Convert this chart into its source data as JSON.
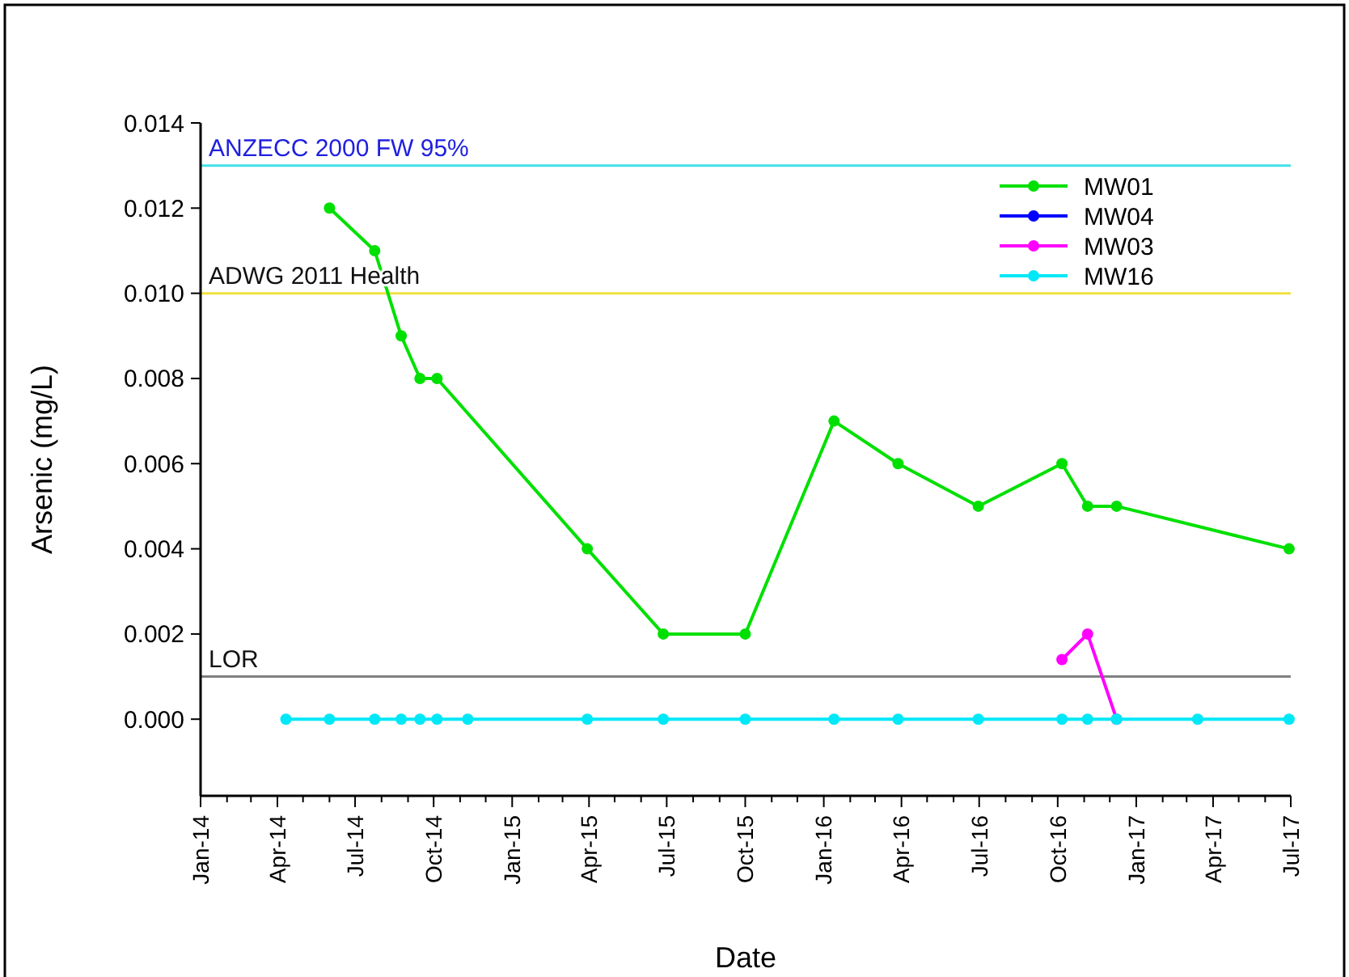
{
  "chart_data": {
    "type": "line",
    "xlabel": "Date",
    "ylabel": "Arsenic (mg/L)",
    "xlim": [
      "2014-01-01",
      "2017-07-01"
    ],
    "ylim": [
      -0.0018,
      0.014
    ],
    "xticks": [
      {
        "value": "2014-01-01",
        "label": "Jan-14"
      },
      {
        "value": "2014-02-01",
        "label": null
      },
      {
        "value": "2014-03-01",
        "label": null
      },
      {
        "value": "2014-04-01",
        "label": "Apr-14"
      },
      {
        "value": "2014-05-01",
        "label": null
      },
      {
        "value": "2014-06-01",
        "label": null
      },
      {
        "value": "2014-07-01",
        "label": "Jul-14"
      },
      {
        "value": "2014-08-01",
        "label": null
      },
      {
        "value": "2014-09-01",
        "label": null
      },
      {
        "value": "2014-10-01",
        "label": "Oct-14"
      },
      {
        "value": "2014-11-01",
        "label": null
      },
      {
        "value": "2014-12-01",
        "label": null
      },
      {
        "value": "2015-01-01",
        "label": "Jan-15"
      },
      {
        "value": "2015-02-01",
        "label": null
      },
      {
        "value": "2015-03-01",
        "label": null
      },
      {
        "value": "2015-04-01",
        "label": "Apr-15"
      },
      {
        "value": "2015-05-01",
        "label": null
      },
      {
        "value": "2015-06-01",
        "label": null
      },
      {
        "value": "2015-07-01",
        "label": "Jul-15"
      },
      {
        "value": "2015-08-01",
        "label": null
      },
      {
        "value": "2015-09-01",
        "label": null
      },
      {
        "value": "2015-10-01",
        "label": "Oct-15"
      },
      {
        "value": "2015-11-01",
        "label": null
      },
      {
        "value": "2015-12-01",
        "label": null
      },
      {
        "value": "2016-01-01",
        "label": "Jan-16"
      },
      {
        "value": "2016-02-01",
        "label": null
      },
      {
        "value": "2016-03-01",
        "label": null
      },
      {
        "value": "2016-04-01",
        "label": "Apr-16"
      },
      {
        "value": "2016-05-01",
        "label": null
      },
      {
        "value": "2016-06-01",
        "label": null
      },
      {
        "value": "2016-07-01",
        "label": "Jul-16"
      },
      {
        "value": "2016-08-01",
        "label": null
      },
      {
        "value": "2016-09-01",
        "label": null
      },
      {
        "value": "2016-10-01",
        "label": "Oct-16"
      },
      {
        "value": "2016-11-01",
        "label": null
      },
      {
        "value": "2016-12-01",
        "label": null
      },
      {
        "value": "2017-01-01",
        "label": "Jan-17"
      },
      {
        "value": "2017-02-01",
        "label": null
      },
      {
        "value": "2017-03-01",
        "label": null
      },
      {
        "value": "2017-04-01",
        "label": "Apr-17"
      },
      {
        "value": "2017-05-01",
        "label": null
      },
      {
        "value": "2017-06-01",
        "label": null
      },
      {
        "value": "2017-07-01",
        "label": "Jul-17"
      }
    ],
    "yticks": [
      {
        "value": 0,
        "label": "0.000"
      },
      {
        "value": 0.002,
        "label": "0.002"
      },
      {
        "value": 0.004,
        "label": "0.004"
      },
      {
        "value": 0.006,
        "label": "0.006"
      },
      {
        "value": 0.008,
        "label": "0.008"
      },
      {
        "value": 0.01,
        "label": "0.010"
      },
      {
        "value": 0.012,
        "label": "0.012"
      },
      {
        "value": 0.014,
        "label": "0.014"
      }
    ],
    "grid": false,
    "legend": "top right",
    "marker": "circle",
    "line_style": "solid",
    "ref_lines": [
      {
        "axis": "y",
        "value": 0.013,
        "label": "ANZECC 2000 FW 95%",
        "color": "#40e0e8"
      },
      {
        "axis": "y",
        "value": 0.01,
        "label": "ADWG 2011 Health",
        "color": "#f0e040"
      },
      {
        "axis": "y",
        "value": 0.001,
        "label": "LOR",
        "color": "#808080"
      }
    ],
    "series": [
      {
        "name": "MW01",
        "color": "#00e000",
        "x": [
          "2014-06-01",
          "2014-07-24",
          "2014-08-24",
          "2014-09-15",
          "2014-10-05",
          "2015-03-30",
          "2015-06-27",
          "2015-10-01",
          "2016-01-13",
          "2016-03-28",
          "2016-06-30",
          "2016-10-06",
          "2016-11-05",
          "2016-12-09",
          "2017-06-29"
        ],
        "values": [
          0.012,
          0.011,
          0.009,
          0.008,
          0.008,
          0.004,
          0.002,
          0.002,
          0.007,
          0.006,
          0.005,
          0.006,
          0.005,
          0.005,
          0.004
        ]
      },
      {
        "name": "MW04",
        "color": "#0000ff"
      },
      {
        "name": "MW03",
        "color": "#ff00ff",
        "x": [
          "2016-10-06",
          "2016-11-05",
          "2016-12-09"
        ],
        "values": [
          0.0014,
          0.002,
          0
        ]
      },
      {
        "name": "MW16",
        "color": "#00e8f8",
        "x": [
          "2014-04-11",
          "2014-06-01",
          "2014-07-24",
          "2014-08-24",
          "2014-09-15",
          "2014-10-05",
          "2014-11-10",
          "2015-03-30",
          "2015-06-27",
          "2015-10-01",
          "2016-01-13",
          "2016-03-28",
          "2016-06-30",
          "2016-10-06",
          "2016-11-05",
          "2016-12-09",
          "2017-03-14",
          "2017-06-29"
        ],
        "values": [
          0,
          0,
          0,
          0,
          0,
          0,
          0,
          0,
          0,
          0,
          0,
          0,
          0,
          0,
          0,
          0,
          0,
          0
        ]
      }
    ]
  }
}
